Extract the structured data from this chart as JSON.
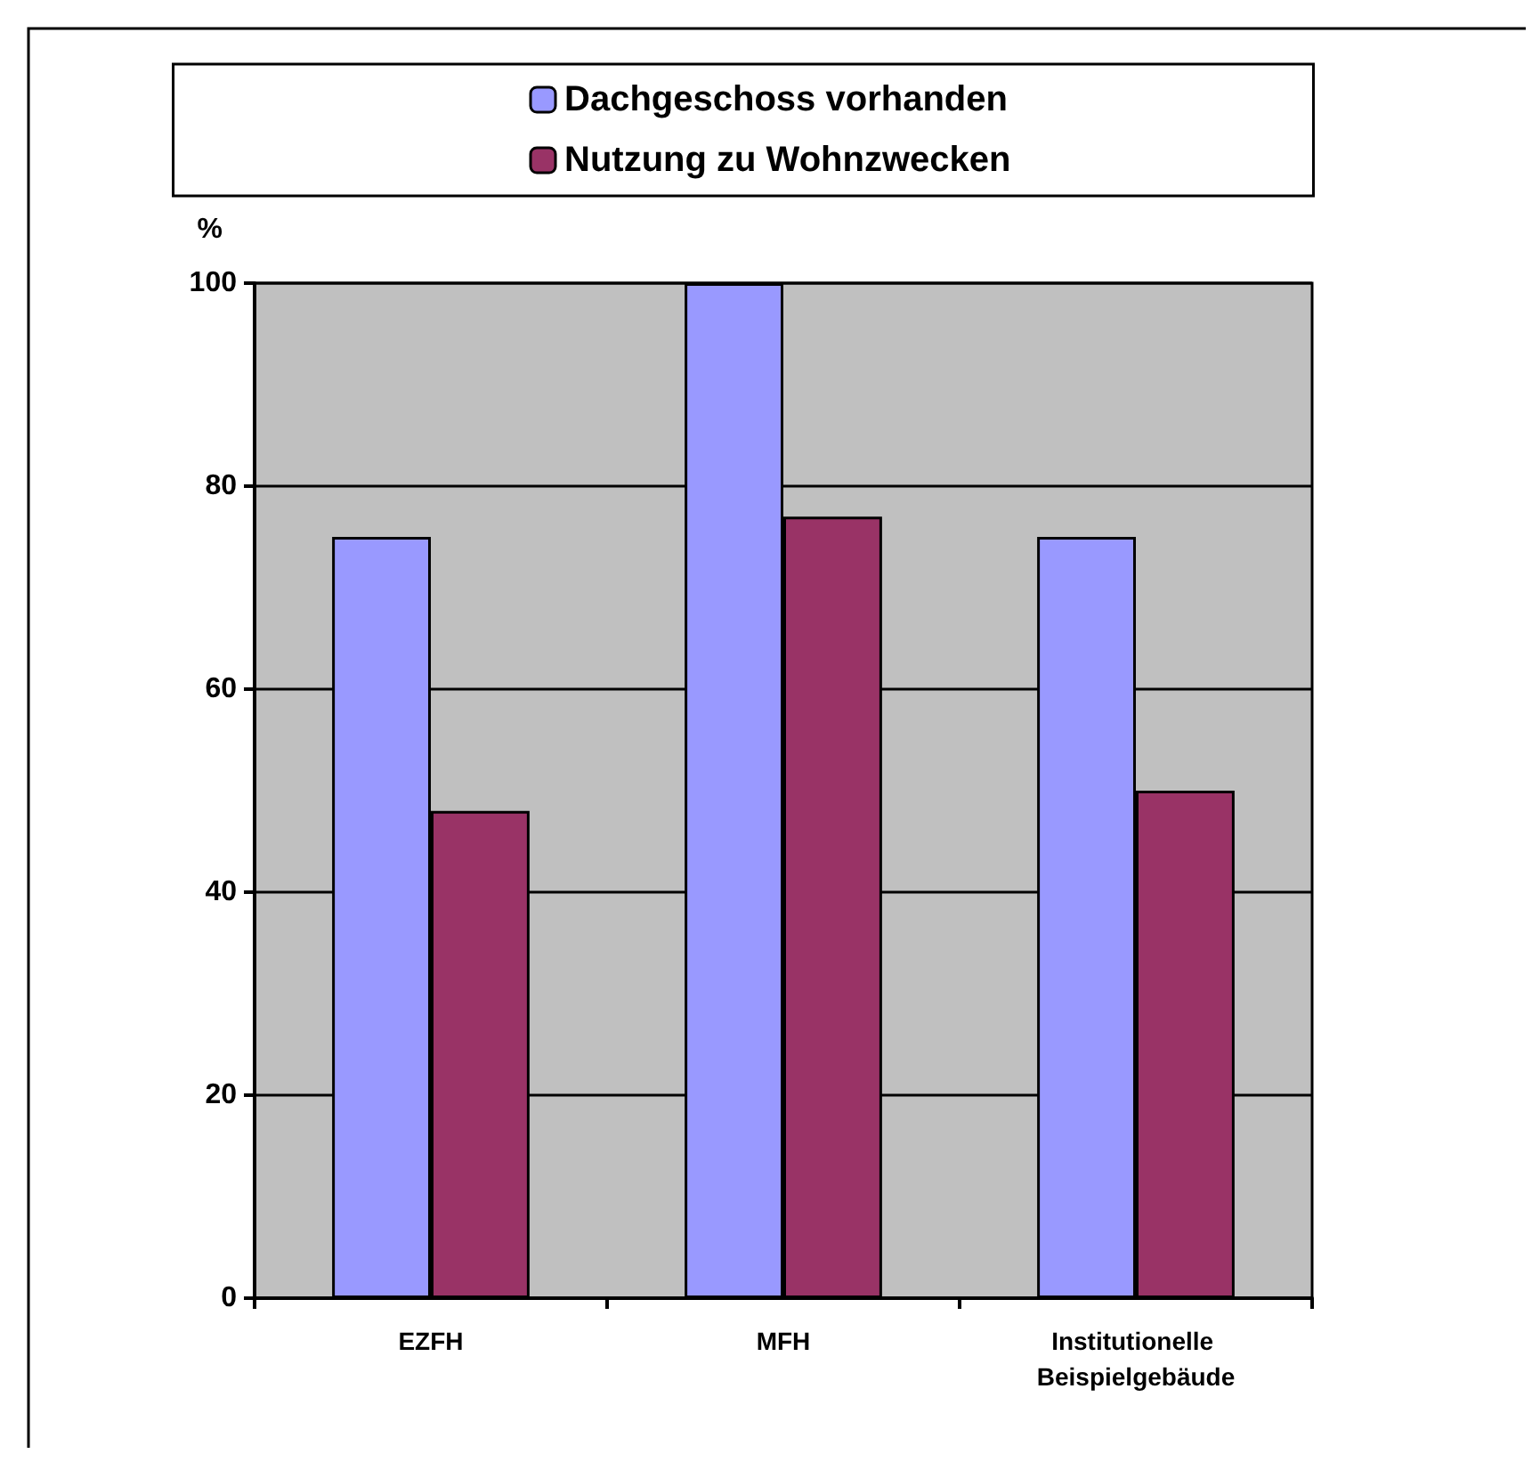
{
  "chart_data": {
    "type": "bar",
    "ylabel": "%",
    "categories": [
      "EZFH",
      "MFH",
      "Institutionelle Beispielgebäude"
    ],
    "series": [
      {
        "name": "Dachgeschoss vorhanden",
        "color": "#9999ff",
        "values": [
          75,
          100,
          75
        ]
      },
      {
        "name": "Nutzung zu Wohnzwecken",
        "color": "#993366",
        "values": [
          48,
          77,
          50
        ]
      }
    ],
    "ylim": [
      0,
      100
    ],
    "yticks": [
      0,
      20,
      40,
      60,
      80,
      100
    ],
    "grid": "y",
    "legend": "top"
  }
}
